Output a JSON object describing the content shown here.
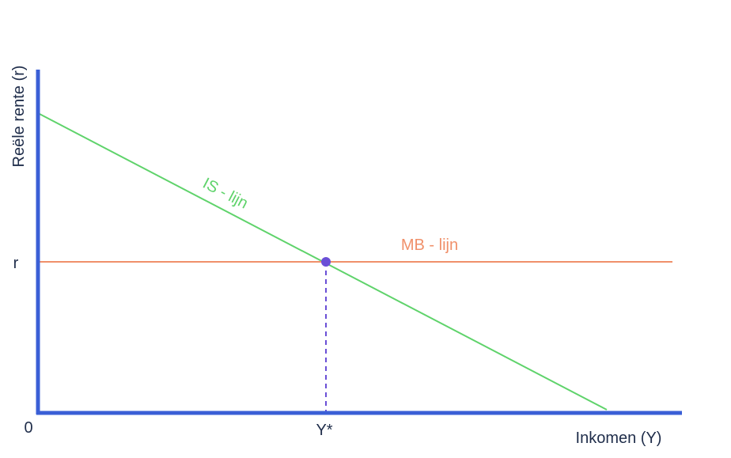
{
  "diagram": {
    "y_axis_label": "Reële rente (r)",
    "x_axis_label": "Inkomen (Y)",
    "origin_label": "0",
    "r_tick_label": "r",
    "y_star_tick_label": "Y*",
    "is_curve_label": "IS - lijn",
    "mb_curve_label": "MB - lijn",
    "colors": {
      "axis": "#3a5fd6",
      "is_curve": "#5fd36b",
      "mb_curve": "#f0906a",
      "equilibrium_point": "#6a4fd6",
      "guide_line": "#6a4fd6",
      "text": "#1f2d4a"
    }
  }
}
